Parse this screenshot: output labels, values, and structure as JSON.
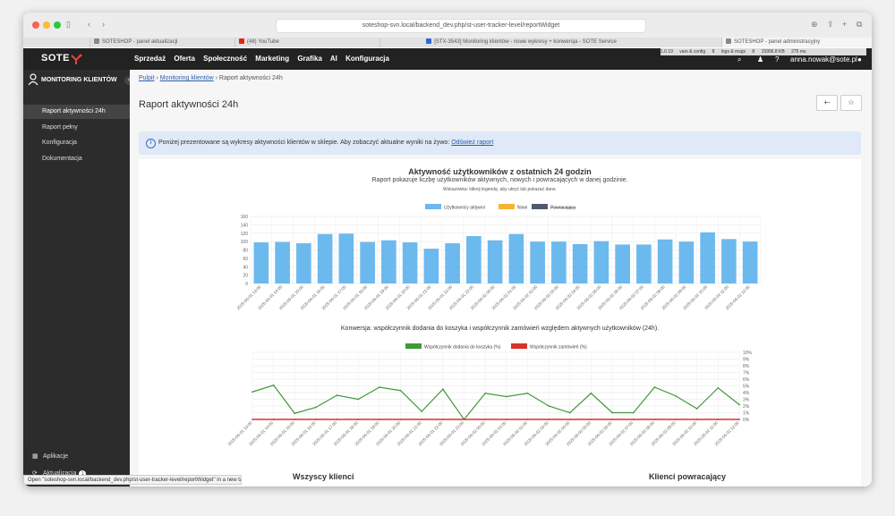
{
  "browser": {
    "url": "soteshop-svn.local/backend_dev.php/st-user-tracker-level/reportWidget",
    "tabs": [
      {
        "label": "SOTESHOP - panel aktualizacji",
        "color": "#888888"
      },
      {
        "label": "(48) YouTube",
        "color": "#e62117"
      },
      {
        "label": "[STX-3543] Monitoring klientów - nowe wykresy + konwersja - SOTE Service",
        "color": "#2a6ad8"
      },
      {
        "label": "SOTESHOP - panel administracyjny",
        "color": "#888888"
      }
    ],
    "status_text": "Open \"soteshop-svn.local/backend_dev.php/st-user-tracker-level/reportWidget\" in a new tab"
  },
  "header": {
    "logo": "SOTE",
    "nav": [
      "Sprzedaż",
      "Oferta",
      "Społeczność",
      "Marketing",
      "Grafika",
      "AI",
      "Konfiguracja"
    ],
    "debug": [
      "1.0.19",
      "vars & config",
      "8",
      "logs & msgs",
      "8",
      "15906.8 KB",
      "275 ms"
    ],
    "user_email": "anna.nowak@sote.pl"
  },
  "sidebar": {
    "title": "MONITORING KLIENTÓW",
    "items": [
      "Raport aktywności 24h",
      "Raport pełny",
      "Konfiguracja",
      "Dokumentacja"
    ],
    "active_index": 0,
    "bottom": {
      "apps": "Aplikacje",
      "updates": "Aktualizacja",
      "updates_badge": "1"
    }
  },
  "main": {
    "breadcrumb": {
      "home": "Pulpit",
      "section": "Monitoring klientów",
      "current": "Raport aktywności 24h"
    },
    "page_title": "Raport aktywności 24h",
    "header_buttons": [
      "+-",
      "☆"
    ],
    "info": {
      "text": "Poniżej prezentowane są wykresy aktywności klientów w sklepie. Aby zobaczyć aktualne wyniki na żywo:",
      "link": "Odśwież raport"
    }
  },
  "activity_chart": {
    "title": "Aktywność użytkowników z ostatnich 24 godzin",
    "subtitle": "Raport pokazuje liczbę użytkowników aktywnych, nowych i powracających w danej godzinie.",
    "hint": "Wskazówka: kliknij legendę, aby ukryć lub pokazać dane."
  },
  "conversion_chart": {
    "title": "Konwersja: współczynnik dodania do koszyka i współczynnik zamówień względem aktywnych użytkowników (24h)."
  },
  "pies": {
    "left_title": "Wszyscy klienci",
    "right_title": "Klienci powracający"
  },
  "chart_data": [
    {
      "type": "bar",
      "categories": [
        "2025-06-01 13:00",
        "2025-06-01 14:00",
        "2025-06-01 15:00",
        "2025-06-01 16:00",
        "2025-06-01 17:00",
        "2025-06-01 18:00",
        "2025-06-01 19:00",
        "2025-06-01 20:00",
        "2025-06-01 21:00",
        "2025-06-01 22:00",
        "2025-06-01 23:00",
        "2025-06-02 00:00",
        "2025-06-02 01:00",
        "2025-06-02 02:00",
        "2025-06-02 03:00",
        "2025-06-02 04:00",
        "2025-06-02 05:00",
        "2025-06-02 06:00",
        "2025-06-02 07:00",
        "2025-06-02 08:00",
        "2025-06-02 09:00",
        "2025-06-02 10:00",
        "2025-06-02 11:00",
        "2025-06-02 12:00"
      ],
      "series": [
        {
          "name": "Użytkownicy aktywni",
          "color": "#6cb9ee",
          "values": [
            98,
            99,
            96,
            118,
            119,
            99,
            103,
            98,
            83,
            96,
            113,
            103,
            118,
            100,
            100,
            94,
            101,
            93,
            93,
            105,
            100,
            122,
            106,
            100
          ]
        },
        {
          "name": "Nowi",
          "color": "#f2b731",
          "values": [
            0,
            0,
            0,
            0,
            0,
            0,
            0,
            0,
            0,
            0,
            0,
            0,
            0,
            0,
            0,
            0,
            0,
            0,
            0,
            0,
            0,
            0,
            0,
            0
          ]
        },
        {
          "name": "Powracający",
          "color": "#4e5a6e",
          "values": [
            0,
            0,
            0,
            0,
            0,
            0,
            0,
            0,
            0,
            0,
            0,
            0,
            0,
            0,
            0,
            0,
            0,
            0,
            0,
            0,
            0,
            0,
            0,
            0
          ]
        }
      ],
      "ylim": [
        0,
        160
      ],
      "yticks": [
        0,
        20,
        40,
        60,
        80,
        100,
        120,
        140,
        160
      ],
      "grid": true,
      "legend": "top"
    },
    {
      "type": "line",
      "categories": [
        "2025-06-01 13:00",
        "2025-06-01 14:00",
        "2025-06-01 15:00",
        "2025-06-01 16:00",
        "2025-06-01 17:00",
        "2025-06-01 18:00",
        "2025-06-01 19:00",
        "2025-06-01 20:00",
        "2025-06-01 21:00",
        "2025-06-01 22:00",
        "2025-06-01 23:00",
        "2025-06-02 00:00",
        "2025-06-02 01:00",
        "2025-06-02 02:00",
        "2025-06-02 03:00",
        "2025-06-02 04:00",
        "2025-06-02 05:00",
        "2025-06-02 06:00",
        "2025-06-02 07:00",
        "2025-06-02 08:00",
        "2025-06-02 09:00",
        "2025-06-02 10:00",
        "2025-06-02 11:00",
        "2025-06-02 12:00"
      ],
      "series": [
        {
          "name": "Współczynnik dodania do koszyka (%)",
          "color": "#3f9a3a",
          "values": [
            4.1,
            5.1,
            0.9,
            1.8,
            3.6,
            3.0,
            4.8,
            4.3,
            1.2,
            4.5,
            0,
            3.9,
            3.4,
            3.9,
            2.0,
            1.0,
            3.9,
            1.0,
            1.0,
            4.8,
            3.5,
            1.6,
            4.7,
            2.2
          ]
        },
        {
          "name": "Współczynnik zamówień (%)",
          "color": "#d9322b",
          "values": [
            0,
            0,
            0,
            0,
            0,
            0,
            0,
            0,
            0,
            0,
            0,
            0,
            0,
            0,
            0,
            0,
            0,
            0,
            0,
            0,
            0,
            0,
            0,
            0
          ]
        }
      ],
      "ylim": [
        0,
        10
      ],
      "yticks": [
        "0%",
        "1%",
        "2%",
        "3%",
        "4%",
        "5%",
        "6%",
        "7%",
        "8%",
        "9%",
        "10%"
      ],
      "y_axis_side": "right",
      "grid": true,
      "legend": "top"
    }
  ]
}
